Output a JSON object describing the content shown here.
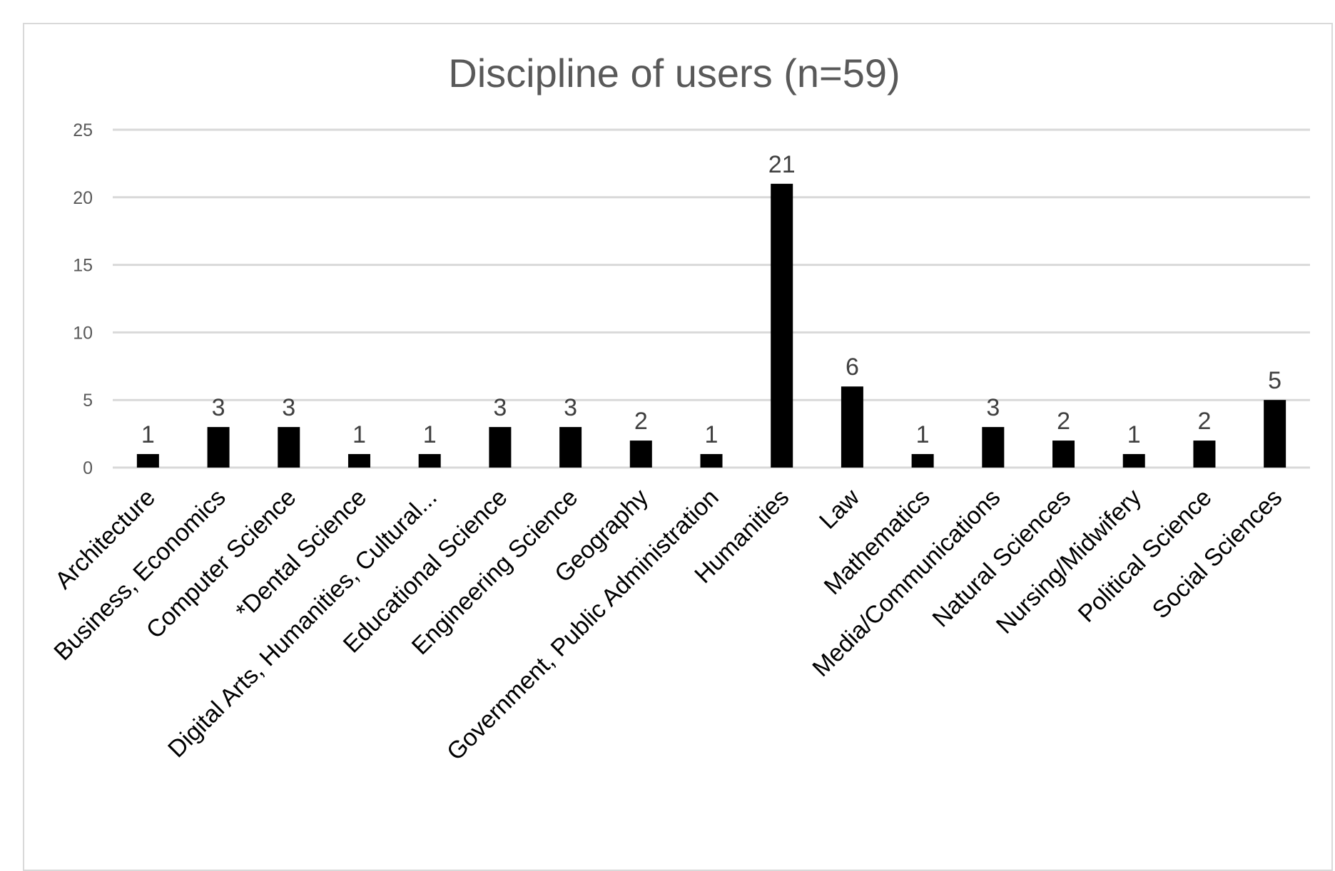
{
  "chart_data": {
    "type": "bar",
    "title": "Discipline of users (n=59)",
    "xlabel": "",
    "ylabel": "",
    "ylim": [
      0,
      25
    ],
    "yticks": [
      "0",
      "5",
      "10",
      "15",
      "20",
      "25"
    ],
    "grid": true,
    "legend": "none",
    "bar_color": "#000000",
    "categories": [
      "Architecture",
      "Business, Economics",
      "Computer Science",
      "*Dental Science",
      "Digital Arts, Humanities, Cultural...",
      "Educational Science",
      "Engineering Science",
      "Geography",
      "Government, Public Administration",
      "Humanities",
      "Law",
      "Mathematics",
      "Media/Communications",
      "Natural Sciences",
      "Nursing/Midwifery",
      "Political Science",
      "Social Sciences"
    ],
    "values": [
      1,
      3,
      3,
      1,
      1,
      3,
      3,
      2,
      1,
      21,
      6,
      1,
      3,
      2,
      1,
      2,
      5
    ]
  }
}
